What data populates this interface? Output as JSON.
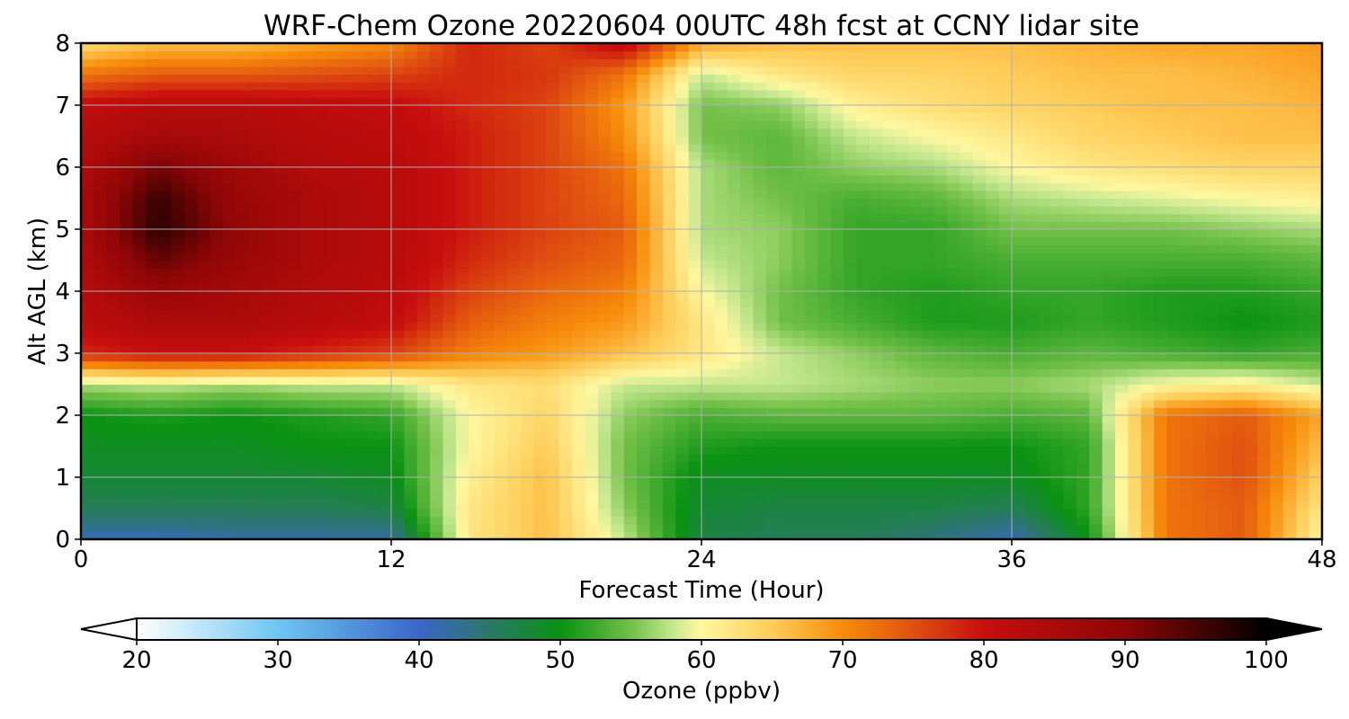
{
  "chart_data": {
    "type": "heatmap",
    "title": "WRF-Chem Ozone  20220604 00UTC 48h fcst at CCNY lidar site",
    "xlabel": "Forecast Time (Hour)",
    "ylabel": "Alt AGL (km)",
    "xlim": [
      0,
      48
    ],
    "ylim": [
      0,
      8
    ],
    "xticks": [
      0,
      12,
      24,
      36,
      48
    ],
    "yticks": [
      0,
      1,
      2,
      3,
      4,
      5,
      6,
      7,
      8
    ],
    "grid": true,
    "x": [
      0,
      3,
      6,
      9,
      12,
      15,
      18,
      21,
      24,
      27,
      30,
      33,
      36,
      39,
      42,
      45,
      48
    ],
    "y": [
      0,
      0.5,
      1,
      1.5,
      2,
      2.5,
      3,
      3.5,
      4,
      4.5,
      5,
      5.5,
      6,
      6.5,
      7,
      7.5,
      8
    ],
    "z": [
      [
        41,
        41,
        42,
        42,
        42,
        62,
        66,
        58,
        47,
        46,
        46,
        44,
        41,
        50,
        72,
        74,
        60
      ],
      [
        46,
        46,
        46,
        46,
        47,
        62,
        66,
        56,
        48,
        47,
        47,
        47,
        46,
        52,
        72,
        74,
        62
      ],
      [
        48,
        48,
        48,
        48,
        49,
        61,
        66,
        55,
        49,
        49,
        49,
        49,
        49,
        52,
        72,
        75,
        64
      ],
      [
        49,
        49,
        49,
        50,
        50,
        60,
        65,
        55,
        51,
        50,
        50,
        50,
        50,
        52,
        72,
        75,
        66
      ],
      [
        50,
        51,
        50,
        51,
        52,
        60,
        64,
        56,
        53,
        54,
        54,
        54,
        53,
        54,
        72,
        74,
        68
      ],
      [
        57,
        58,
        57,
        58,
        58,
        62,
        63,
        58,
        58,
        58,
        57,
        56,
        56,
        57,
        60,
        61,
        58
      ],
      [
        78,
        80,
        80,
        78,
        76,
        71,
        69,
        66,
        62,
        58,
        56,
        54,
        53,
        54,
        53,
        52,
        53
      ],
      [
        82,
        85,
        85,
        83,
        81,
        74,
        71,
        69,
        62,
        55,
        53,
        51,
        51,
        52,
        51,
        50,
        51
      ],
      [
        83,
        88,
        86,
        84,
        82,
        76,
        73,
        71,
        60,
        55,
        52,
        51,
        52,
        52,
        51,
        51,
        52
      ],
      [
        84,
        93,
        88,
        85,
        83,
        78,
        75,
        73,
        58,
        56,
        52,
        52,
        53,
        53,
        53,
        53,
        54
      ],
      [
        85,
        97,
        89,
        85,
        83,
        79,
        76,
        74,
        57,
        56,
        52,
        52,
        55,
        55,
        55,
        56,
        57
      ],
      [
        85,
        96,
        88,
        85,
        83,
        79,
        76,
        73,
        57,
        55,
        53,
        54,
        57,
        58,
        59,
        60,
        61
      ],
      [
        84,
        92,
        87,
        84,
        83,
        79,
        76,
        72,
        57,
        54,
        56,
        57,
        60,
        62,
        63,
        64,
        64
      ],
      [
        83,
        86,
        85,
        83,
        82,
        79,
        76,
        70,
        55,
        54,
        58,
        60,
        62,
        64,
        65,
        66,
        66
      ],
      [
        81,
        83,
        83,
        82,
        81,
        78,
        76,
        69,
        55,
        56,
        61,
        63,
        64,
        65,
        66,
        66,
        67
      ],
      [
        72,
        74,
        74,
        75,
        76,
        78,
        77,
        72,
        58,
        62,
        64,
        64,
        65,
        66,
        66,
        67,
        68
      ],
      [
        63,
        66,
        66,
        68,
        70,
        78,
        76,
        82,
        68,
        66,
        66,
        66,
        66,
        67,
        68,
        68,
        69
      ]
    ],
    "colorbar": {
      "label": "Ozone  (ppbv)",
      "min": 20,
      "max": 100,
      "ticks": [
        20,
        30,
        40,
        50,
        60,
        70,
        80,
        90,
        100
      ],
      "extend": "both",
      "stops": [
        {
          "v": 20,
          "c": "#ffffff"
        },
        {
          "v": 30,
          "c": "#6ec6f2"
        },
        {
          "v": 40,
          "c": "#3a66c8"
        },
        {
          "v": 45,
          "c": "#2a7868"
        },
        {
          "v": 50,
          "c": "#0a9212"
        },
        {
          "v": 55,
          "c": "#72c048"
        },
        {
          "v": 58,
          "c": "#c6e890"
        },
        {
          "v": 60,
          "c": "#fff8a0"
        },
        {
          "v": 65,
          "c": "#ffcc58"
        },
        {
          "v": 70,
          "c": "#f78c0a"
        },
        {
          "v": 75,
          "c": "#e05010"
        },
        {
          "v": 80,
          "c": "#c80e0e"
        },
        {
          "v": 90,
          "c": "#8e0606"
        },
        {
          "v": 100,
          "c": "#000000"
        }
      ]
    }
  }
}
